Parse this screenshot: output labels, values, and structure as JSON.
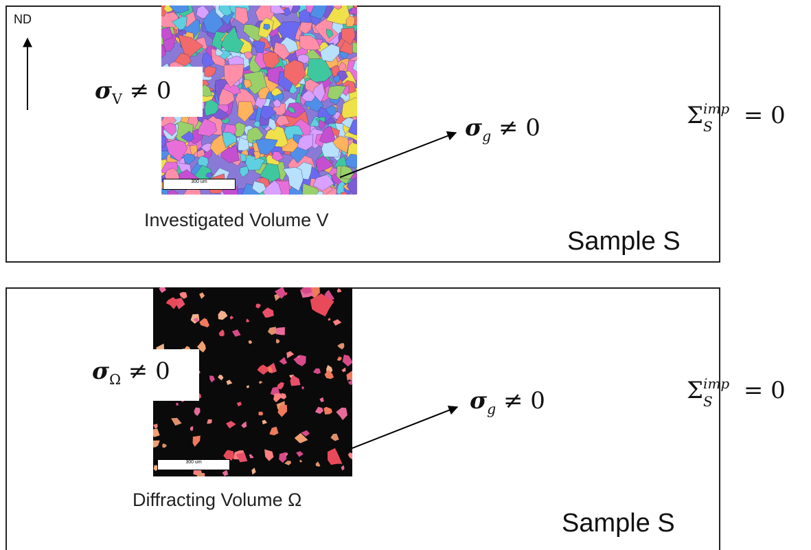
{
  "direction_label": "ND",
  "top_panel": {
    "sample_label": "Sample S",
    "volume_label": "Investigated Volume V",
    "stress_volume": {
      "symbol": "σ",
      "subscript": "V",
      "relation": "≠ 0"
    },
    "stress_grain": {
      "symbol": "σ",
      "subscript": "g",
      "relation": "≠ 0"
    },
    "imposed_stress": {
      "symbol": "Σ",
      "subscript": "S",
      "superscript": "imp",
      "relation": "= 0"
    },
    "scale_bar_label": "300 um"
  },
  "bottom_panel": {
    "sample_label": "Sample S",
    "volume_label": "Diffracting Volume Ω",
    "stress_volume": {
      "symbol": "σ",
      "subscript": "Ω",
      "relation": "≠ 0"
    },
    "stress_grain": {
      "symbol": "σ",
      "subscript": "g",
      "relation": "≠ 0"
    },
    "imposed_stress": {
      "symbol": "Σ",
      "subscript": "S",
      "superscript": "imp",
      "relation": "= 0"
    },
    "scale_bar_label": "300 um"
  },
  "colors": {
    "frame": "#222222",
    "diffracting_background": "#0a0a0a"
  }
}
